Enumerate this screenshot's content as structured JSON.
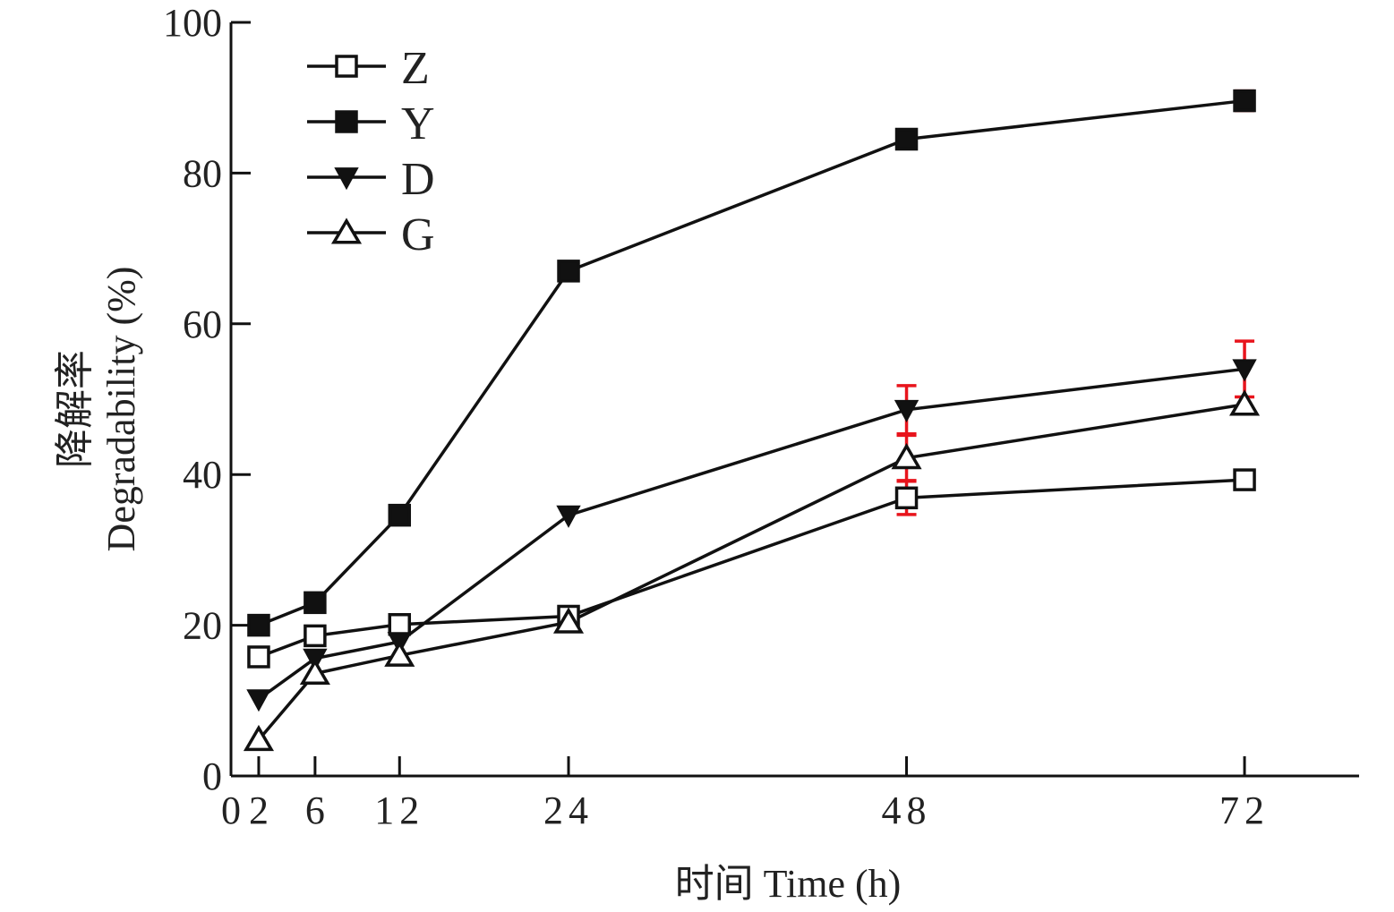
{
  "chart_data": {
    "type": "line",
    "xlabel": "时间  Time (h)",
    "ylabel_cn": "降解率",
    "ylabel_en": "Degradability (%)",
    "xlim": [
      0,
      82
    ],
    "ylim": [
      0,
      100
    ],
    "xticks": [
      0,
      2,
      6,
      12,
      24,
      48,
      72
    ],
    "yticks": [
      0,
      20,
      40,
      60,
      80,
      100
    ],
    "legend_position": "top-left",
    "colors": {
      "line": "#111111",
      "error_bar": "#e8141c",
      "background": "#ffffff"
    },
    "series": [
      {
        "name": "Z",
        "marker": "open-square",
        "x": [
          2,
          6,
          12,
          24,
          48,
          72
        ],
        "y": [
          15.8,
          18.6,
          20.1,
          21.2,
          36.9,
          39.3
        ],
        "err": [
          0,
          0,
          0,
          0,
          2.2,
          0
        ]
      },
      {
        "name": "Y",
        "marker": "filled-square",
        "x": [
          2,
          6,
          12,
          24,
          48,
          72
        ],
        "y": [
          20.0,
          23.0,
          34.6,
          67.0,
          84.5,
          89.6
        ],
        "err": [
          0,
          0,
          0.9,
          0,
          0,
          1.3
        ]
      },
      {
        "name": "D",
        "marker": "filled-triangle-down",
        "x": [
          2,
          6,
          12,
          24,
          48,
          72
        ],
        "y": [
          10.2,
          15.6,
          17.8,
          34.6,
          48.6,
          54.0
        ],
        "err": [
          0,
          0,
          0,
          0,
          3.2,
          3.7
        ]
      },
      {
        "name": "G",
        "marker": "open-triangle-up",
        "x": [
          2,
          6,
          12,
          24,
          48,
          72
        ],
        "y": [
          4.8,
          13.6,
          16.0,
          20.4,
          42.2,
          49.3
        ],
        "err": [
          0,
          0,
          0,
          0,
          3.0,
          0
        ]
      }
    ]
  }
}
